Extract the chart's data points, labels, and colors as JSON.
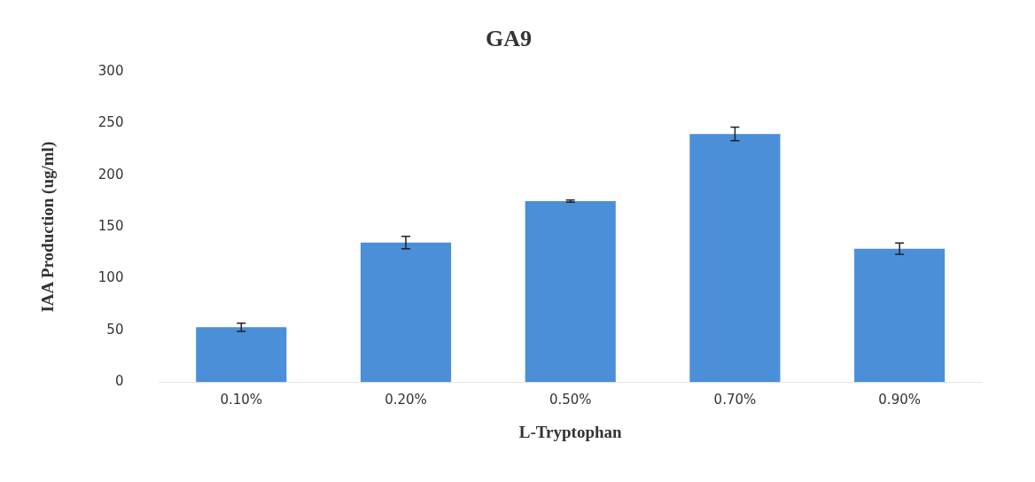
{
  "chart_data": {
    "type": "bar",
    "title": "GA9",
    "xlabel": "L-Tryptophan",
    "ylabel": "IAA Production (ug/ml)",
    "categories": [
      "0.10%",
      "0.20%",
      "0.50%",
      "0.70%",
      "0.90%"
    ],
    "values": [
      53,
      135,
      175,
      240,
      129
    ],
    "errors": [
      4,
      6,
      1,
      6.5,
      5.5
    ],
    "color": "#4a8fd8",
    "ylim": [
      0,
      300
    ],
    "yticks": [
      0,
      50,
      100,
      150,
      200,
      250,
      300
    ],
    "grid": false,
    "legend": false
  }
}
